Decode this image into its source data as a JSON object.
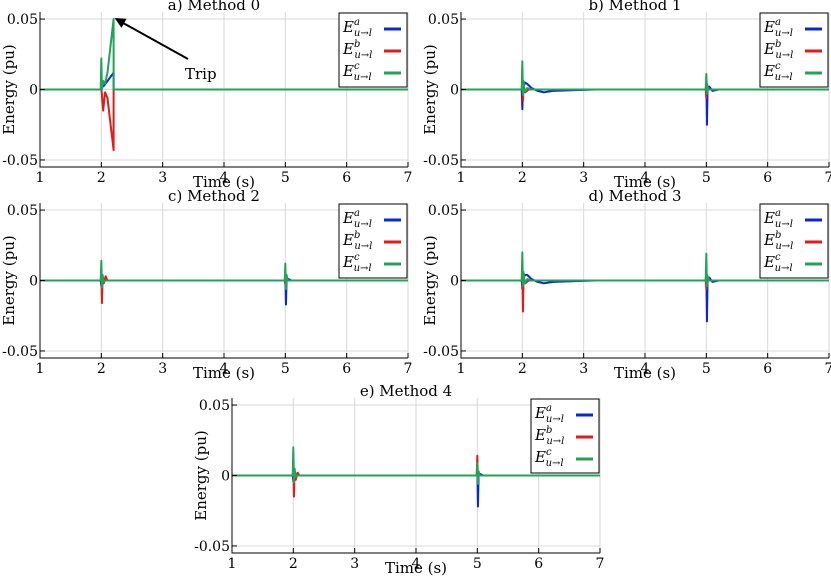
{
  "chart_data": [
    {
      "id": "p0",
      "type": "line",
      "title": "a) Method 0",
      "xlabel": "Time (s)",
      "ylabel": "Energy (pu)",
      "xlim": [
        1,
        7
      ],
      "ylim": [
        -0.055,
        0.055
      ],
      "xticks": [
        "1",
        "2",
        "3",
        "4",
        "5",
        "6",
        "7"
      ],
      "yticks": [
        {
          "v": 0.05,
          "label": "0.05"
        },
        {
          "v": 0,
          "label": "0"
        },
        {
          "v": -0.05,
          "label": "-0.05"
        }
      ],
      "grid": true,
      "legend": "top-right",
      "annotation": {
        "text": "Trip",
        "point": [
          2.2,
          0.05
        ],
        "text_pos": [
          2.8,
          0.02
        ]
      },
      "series": [
        {
          "name": "Ea",
          "sup": "a",
          "color": "#0a28d2",
          "points": [
            [
              1,
              0
            ],
            [
              2,
              0
            ],
            [
              2.02,
              0.002
            ],
            [
              2.05,
              0.003
            ],
            [
              2.1,
              0.006
            ],
            [
              2.2,
              0.012
            ],
            [
              2.2,
              0
            ],
            [
              7,
              0
            ]
          ]
        },
        {
          "name": "Eb",
          "sup": "b",
          "color": "#e11a1a",
          "points": [
            [
              1,
              0
            ],
            [
              2,
              0
            ],
            [
              2.01,
              -0.004
            ],
            [
              2.03,
              -0.015
            ],
            [
              2.06,
              -0.002
            ],
            [
              2.1,
              -0.006
            ],
            [
              2.2,
              -0.043
            ],
            [
              2.2,
              0
            ],
            [
              7,
              0
            ]
          ]
        },
        {
          "name": "Ec",
          "sup": "c",
          "color": "#22a35a",
          "points": [
            [
              1,
              0
            ],
            [
              1.99,
              0
            ],
            [
              2,
              0.022
            ],
            [
              2.01,
              0
            ],
            [
              2.03,
              0.006
            ],
            [
              2.06,
              0.004
            ],
            [
              2.1,
              0.012
            ],
            [
              2.2,
              0.05
            ],
            [
              2.2,
              0
            ],
            [
              7,
              0
            ]
          ]
        }
      ]
    },
    {
      "id": "p1",
      "type": "line",
      "title": "b) Method 1",
      "xlabel": "Time (s)",
      "ylabel": "Energy (pu)",
      "xlim": [
        1,
        7
      ],
      "ylim": [
        -0.055,
        0.055
      ],
      "xticks": [
        "1",
        "2",
        "3",
        "4",
        "5",
        "6",
        "7"
      ],
      "yticks": [
        {
          "v": 0.05,
          "label": "0.05"
        },
        {
          "v": 0,
          "label": "0"
        },
        {
          "v": -0.05,
          "label": "-0.05"
        }
      ],
      "grid": true,
      "legend": "top-right",
      "series": [
        {
          "name": "Ea",
          "sup": "a",
          "color": "#0a28d2",
          "points": [
            [
              1,
              0
            ],
            [
              1.99,
              0
            ],
            [
              2,
              -0.014
            ],
            [
              2.01,
              0
            ],
            [
              2.04,
              0.005
            ],
            [
              2.08,
              0.004
            ],
            [
              2.15,
              0.001
            ],
            [
              2.25,
              -0.001
            ],
            [
              2.35,
              -0.002
            ],
            [
              2.5,
              -0.001
            ],
            [
              2.8,
              -0.0005
            ],
            [
              3.2,
              0
            ],
            [
              4.99,
              0
            ],
            [
              5,
              0.006
            ],
            [
              5.01,
              -0.025
            ],
            [
              5.02,
              0
            ],
            [
              5.05,
              0.002
            ],
            [
              5.1,
              -0.001
            ],
            [
              5.2,
              0
            ],
            [
              7,
              0
            ]
          ]
        },
        {
          "name": "Eb",
          "sup": "b",
          "color": "#e11a1a",
          "points": [
            [
              1,
              0
            ],
            [
              1.99,
              0
            ],
            [
              2,
              0.006
            ],
            [
              2.01,
              -0.008
            ],
            [
              2.02,
              0.002
            ],
            [
              2.05,
              -0.002
            ],
            [
              2.1,
              0
            ],
            [
              4.99,
              0
            ],
            [
              5,
              -0.006
            ],
            [
              5.01,
              0.004
            ],
            [
              5.03,
              0
            ],
            [
              7,
              0
            ]
          ]
        },
        {
          "name": "Ec",
          "sup": "c",
          "color": "#22a35a",
          "points": [
            [
              1,
              0
            ],
            [
              1.99,
              0
            ],
            [
              2,
              0.02
            ],
            [
              2.01,
              -0.004
            ],
            [
              2.02,
              0.006
            ],
            [
              2.04,
              -0.002
            ],
            [
              2.08,
              0.001
            ],
            [
              2.15,
              0
            ],
            [
              4.99,
              0
            ],
            [
              5,
              0.011
            ],
            [
              5.01,
              -0.003
            ],
            [
              5.02,
              0.002
            ],
            [
              5.05,
              0
            ],
            [
              7,
              0
            ]
          ]
        }
      ]
    },
    {
      "id": "p2",
      "type": "line",
      "title": "c) Method 2",
      "xlabel": "Time (s)",
      "ylabel": "Energy (pu)",
      "xlim": [
        1,
        7
      ],
      "ylim": [
        -0.055,
        0.055
      ],
      "xticks": [
        "1",
        "2",
        "3",
        "4",
        "5",
        "6",
        "7"
      ],
      "yticks": [
        {
          "v": 0.05,
          "label": "0.05"
        },
        {
          "v": 0,
          "label": "0"
        },
        {
          "v": -0.05,
          "label": "-0.05"
        }
      ],
      "grid": true,
      "legend": "top-right",
      "series": [
        {
          "name": "Ea",
          "sup": "a",
          "color": "#0a28d2",
          "points": [
            [
              1,
              0
            ],
            [
              1.99,
              0
            ],
            [
              2,
              -0.004
            ],
            [
              2.01,
              0.002
            ],
            [
              2.03,
              0
            ],
            [
              4.99,
              0
            ],
            [
              5,
              0.004
            ],
            [
              5.01,
              -0.017
            ],
            [
              5.02,
              0
            ],
            [
              5.05,
              0.001
            ],
            [
              5.1,
              0
            ],
            [
              7,
              0
            ]
          ]
        },
        {
          "name": "Eb",
          "sup": "b",
          "color": "#e11a1a",
          "points": [
            [
              1,
              0
            ],
            [
              1.99,
              0
            ],
            [
              2,
              0.005
            ],
            [
              2.01,
              -0.016
            ],
            [
              2.02,
              0.002
            ],
            [
              2.04,
              -0.002
            ],
            [
              2.07,
              0.003
            ],
            [
              2.1,
              0
            ],
            [
              4.99,
              0
            ],
            [
              5,
              -0.003
            ],
            [
              5.01,
              0.003
            ],
            [
              5.03,
              0
            ],
            [
              7,
              0
            ]
          ]
        },
        {
          "name": "Ec",
          "sup": "c",
          "color": "#22a35a",
          "points": [
            [
              1,
              0
            ],
            [
              1.99,
              0
            ],
            [
              2,
              0.014
            ],
            [
              2.01,
              -0.005
            ],
            [
              2.02,
              0.004
            ],
            [
              2.04,
              -0.001
            ],
            [
              2.07,
              0
            ],
            [
              4.99,
              0
            ],
            [
              5,
              0.012
            ],
            [
              5.01,
              -0.006
            ],
            [
              5.02,
              0.004
            ],
            [
              5.04,
              0
            ],
            [
              7,
              0
            ]
          ]
        }
      ]
    },
    {
      "id": "p3",
      "type": "line",
      "title": "d) Method 3",
      "xlabel": "Time (s)",
      "ylabel": "Energy (pu)",
      "xlim": [
        1,
        7
      ],
      "ylim": [
        -0.055,
        0.055
      ],
      "xticks": [
        "1",
        "2",
        "3",
        "4",
        "5",
        "6",
        "7"
      ],
      "yticks": [
        {
          "v": 0.05,
          "label": "0.05"
        },
        {
          "v": 0,
          "label": "0"
        },
        {
          "v": -0.05,
          "label": "-0.05"
        }
      ],
      "grid": true,
      "legend": "top-right",
      "series": [
        {
          "name": "Ea",
          "sup": "a",
          "color": "#0a28d2",
          "points": [
            [
              1,
              0
            ],
            [
              1.99,
              0
            ],
            [
              2,
              -0.006
            ],
            [
              2.01,
              0
            ],
            [
              2.04,
              0.004
            ],
            [
              2.08,
              0.004
            ],
            [
              2.15,
              0.001
            ],
            [
              2.25,
              -0.001
            ],
            [
              2.35,
              -0.002
            ],
            [
              2.5,
              -0.001
            ],
            [
              2.8,
              -0.0005
            ],
            [
              3.2,
              0
            ],
            [
              4.99,
              0
            ],
            [
              5,
              0.006
            ],
            [
              5.01,
              -0.029
            ],
            [
              5.02,
              0
            ],
            [
              5.05,
              0.002
            ],
            [
              5.1,
              -0.001
            ],
            [
              5.2,
              0
            ],
            [
              7,
              0
            ]
          ]
        },
        {
          "name": "Eb",
          "sup": "b",
          "color": "#e11a1a",
          "points": [
            [
              1,
              0
            ],
            [
              1.99,
              0
            ],
            [
              2,
              0.006
            ],
            [
              2.01,
              -0.022
            ],
            [
              2.02,
              0.002
            ],
            [
              2.05,
              -0.002
            ],
            [
              2.1,
              0
            ],
            [
              4.99,
              0
            ],
            [
              5,
              -0.006
            ],
            [
              5.01,
              0.004
            ],
            [
              5.03,
              0
            ],
            [
              7,
              0
            ]
          ]
        },
        {
          "name": "Ec",
          "sup": "c",
          "color": "#22a35a",
          "points": [
            [
              1,
              0
            ],
            [
              1.99,
              0
            ],
            [
              2,
              0.02
            ],
            [
              2.01,
              -0.004
            ],
            [
              2.02,
              0.006
            ],
            [
              2.04,
              -0.002
            ],
            [
              2.08,
              0.001
            ],
            [
              2.15,
              0
            ],
            [
              4.99,
              0
            ],
            [
              5,
              0.019
            ],
            [
              5.01,
              -0.004
            ],
            [
              5.02,
              0.003
            ],
            [
              5.05,
              0
            ],
            [
              7,
              0
            ]
          ]
        }
      ]
    },
    {
      "id": "p4",
      "type": "line",
      "title": "e) Method 4",
      "xlabel": "Time (s)",
      "ylabel": "Energy (pu)",
      "xlim": [
        1,
        7
      ],
      "ylim": [
        -0.055,
        0.055
      ],
      "xticks": [
        "1",
        "2",
        "3",
        "4",
        "5",
        "6",
        "7"
      ],
      "yticks": [
        {
          "v": 0.05,
          "label": "0.05"
        },
        {
          "v": 0,
          "label": "0"
        },
        {
          "v": -0.05,
          "label": "-0.05"
        }
      ],
      "grid": true,
      "legend": "top-right",
      "series": [
        {
          "name": "Ea",
          "sup": "a",
          "color": "#0a28d2",
          "points": [
            [
              1,
              0
            ],
            [
              1.99,
              0
            ],
            [
              2,
              -0.004
            ],
            [
              2.01,
              0.002
            ],
            [
              2.03,
              0
            ],
            [
              4.99,
              0
            ],
            [
              5,
              0.004
            ],
            [
              5.01,
              -0.022
            ],
            [
              5.02,
              0
            ],
            [
              5.05,
              0.001
            ],
            [
              5.1,
              0
            ],
            [
              7,
              0
            ]
          ]
        },
        {
          "name": "Eb",
          "sup": "b",
          "color": "#e11a1a",
          "points": [
            [
              1,
              0
            ],
            [
              1.99,
              0
            ],
            [
              2,
              0.005
            ],
            [
              2.01,
              -0.015
            ],
            [
              2.02,
              0.002
            ],
            [
              2.04,
              -0.003
            ],
            [
              2.07,
              0.002
            ],
            [
              2.1,
              0
            ],
            [
              4.99,
              0
            ],
            [
              5,
              0.014
            ],
            [
              5.01,
              -0.004
            ],
            [
              5.02,
              0.002
            ],
            [
              5.04,
              0
            ],
            [
              7,
              0
            ]
          ]
        },
        {
          "name": "Ec",
          "sup": "c",
          "color": "#22a35a",
          "points": [
            [
              1,
              0
            ],
            [
              1.99,
              0
            ],
            [
              2,
              0.02
            ],
            [
              2.01,
              -0.005
            ],
            [
              2.02,
              0.005
            ],
            [
              2.04,
              -0.001
            ],
            [
              2.07,
              0
            ],
            [
              4.99,
              0
            ],
            [
              5,
              0.009
            ],
            [
              5.01,
              -0.006
            ],
            [
              5.02,
              0.003
            ],
            [
              5.04,
              0
            ],
            [
              7,
              0
            ]
          ]
        }
      ]
    }
  ]
}
